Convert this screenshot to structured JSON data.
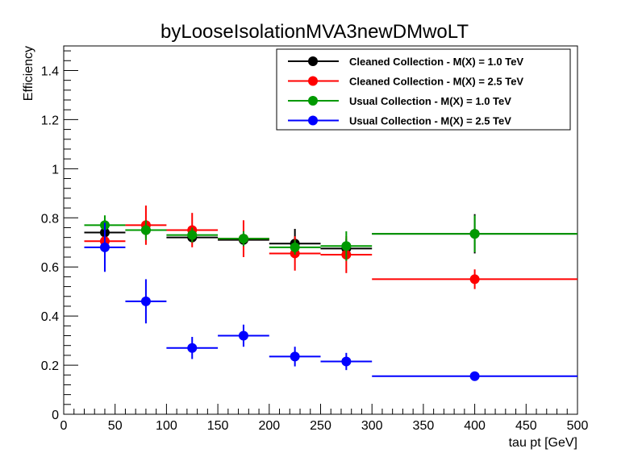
{
  "chart_data": {
    "type": "scatter",
    "title": "byLooseIsolationMVA3newDMwoLT",
    "xlabel": "tau pt [GeV]",
    "ylabel": "Efficiency",
    "xlim": [
      0,
      500
    ],
    "ylim": [
      0,
      1.5
    ],
    "x_ticks": [
      "0",
      "50",
      "100",
      "150",
      "200",
      "250",
      "300",
      "350",
      "400",
      "450",
      "500"
    ],
    "y_ticks": [
      "0",
      "0.2",
      "0.4",
      "0.6",
      "0.8",
      "1",
      "1.2",
      "1.4"
    ],
    "grid": false,
    "legend_position": "top-right",
    "bins": [
      [
        20,
        60
      ],
      [
        60,
        100
      ],
      [
        100,
        150
      ],
      [
        150,
        200
      ],
      [
        200,
        250
      ],
      [
        250,
        300
      ],
      [
        300,
        500
      ]
    ],
    "series": [
      {
        "name": "Cleaned Collection - M(X) = 1.0 TeV",
        "color": "#000000",
        "x": [
          40,
          80,
          125,
          175,
          225,
          275,
          400
        ],
        "y": [
          0.74,
          0.75,
          0.72,
          0.71,
          0.695,
          0.675,
          0.735
        ],
        "yerr": [
          0.03,
          0.03,
          0.02,
          0.02,
          0.06,
          0.04,
          0.08
        ]
      },
      {
        "name": "Cleaned Collection - M(X) = 2.5 TeV",
        "color": "#ff0000",
        "x": [
          40,
          80,
          125,
          175,
          225,
          275,
          400
        ],
        "y": [
          0.705,
          0.77,
          0.75,
          0.715,
          0.655,
          0.65,
          0.55
        ],
        "yerr": [
          0.03,
          0.08,
          0.07,
          0.075,
          0.07,
          0.075,
          0.04
        ]
      },
      {
        "name": "Usual Collection - M(X) = 1.0 TeV",
        "color": "#009900",
        "x": [
          40,
          80,
          125,
          175,
          225,
          275,
          400
        ],
        "y": [
          0.77,
          0.75,
          0.73,
          0.715,
          0.68,
          0.685,
          0.735
        ],
        "yerr": [
          0.04,
          0.04,
          0.03,
          0.03,
          0.03,
          0.06,
          0.075
        ]
      },
      {
        "name": "Usual Collection - M(X) = 2.5 TeV",
        "color": "#0000ff",
        "x": [
          40,
          80,
          125,
          175,
          225,
          275,
          400
        ],
        "y": [
          0.68,
          0.46,
          0.27,
          0.32,
          0.235,
          0.215,
          0.155
        ],
        "yerr": [
          0.1,
          0.09,
          0.045,
          0.045,
          0.04,
          0.035,
          0.015
        ]
      }
    ]
  }
}
